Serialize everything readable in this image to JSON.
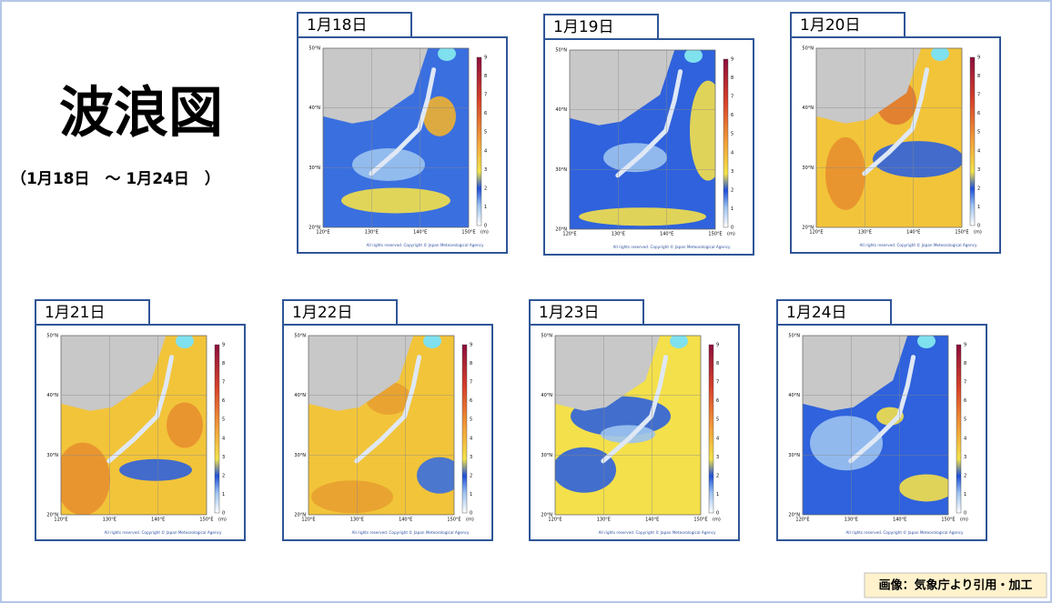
{
  "title": "波浪図",
  "subtitle": "（1月18日　～ 1月24日　）",
  "map_axes": {
    "lat_labels": [
      "50°N",
      "40°N",
      "30°N",
      "20°N"
    ],
    "lon_labels": [
      "120°E",
      "130°E",
      "140°E",
      "150°E"
    ],
    "colorbar_ticks": [
      0,
      1,
      2,
      3,
      4,
      5,
      6,
      7,
      8,
      9
    ],
    "unit": "(m)",
    "copyright": "All rights reserved. Copyright © Japan Meteorological Agency"
  },
  "panels": [
    {
      "date": "1月18日"
    },
    {
      "date": "1月19日"
    },
    {
      "date": "1月20日"
    },
    {
      "date": "1月21日"
    },
    {
      "date": "1月22日"
    },
    {
      "date": "1月23日"
    },
    {
      "date": "1月24日"
    }
  ],
  "credit": "画像：気象庁より引用・加工"
}
